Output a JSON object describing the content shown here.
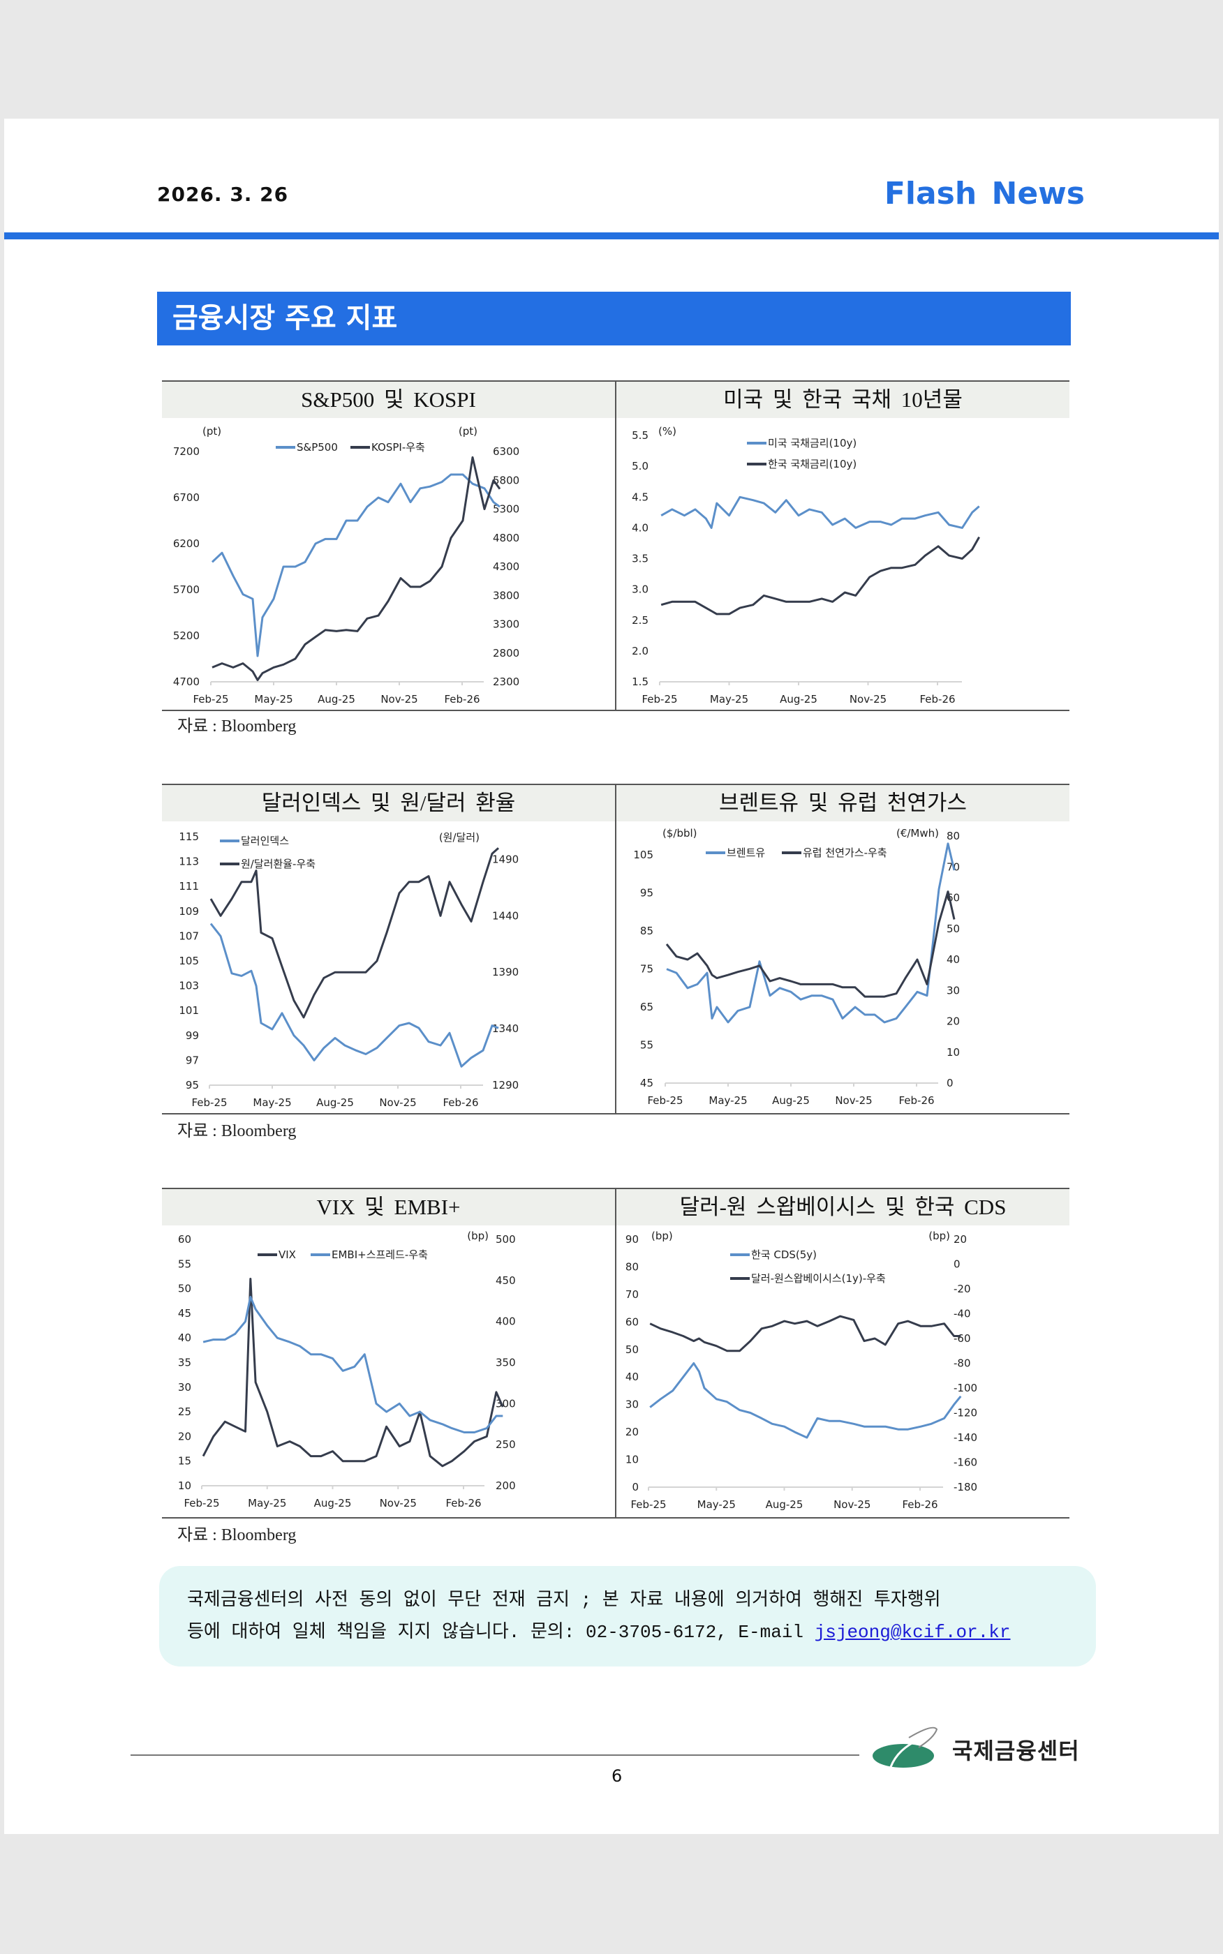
{
  "header": {
    "date": "2026. 3. 26",
    "brand": "Flash News"
  },
  "section_title": "금융시장 주요 지표",
  "sources": [
    "자료 : Bloomberg",
    "자료 : Bloomberg",
    "자료 : Bloomberg"
  ],
  "colors": {
    "accent": "#2470e0",
    "series_light": "#5b8fc9",
    "series_dark": "#353c4c",
    "disclaimer_bg": "#e4f7f6",
    "logo_green": "#2e8b6a"
  },
  "chart_data": [
    {
      "type": "line",
      "title": "S&P500 및 KOSPI",
      "x_dates": [
        "2025-02-03",
        "2025-02-17",
        "2025-03-03",
        "2025-03-17",
        "2025-04-01",
        "2025-04-08",
        "2025-04-15",
        "2025-05-01",
        "2025-05-15",
        "2025-06-02",
        "2025-06-16",
        "2025-07-01",
        "2025-07-15",
        "2025-08-01",
        "2025-08-15",
        "2025-09-01",
        "2025-09-15",
        "2025-10-01",
        "2025-10-15",
        "2025-11-03",
        "2025-11-17",
        "2025-12-01",
        "2025-12-15",
        "2026-01-02",
        "2026-01-15",
        "2026-02-02",
        "2026-02-16",
        "2026-03-03",
        "2026-03-16",
        "2026-03-25"
      ],
      "x_tick_labels": [
        "Feb-25",
        "May-25",
        "Aug-25",
        "Nov-25",
        "Feb-26"
      ],
      "left_axis": {
        "unit": "(pt)",
        "range": [
          4700,
          7200
        ],
        "ticks": [
          4700,
          5200,
          5700,
          6200,
          6700,
          7200
        ]
      },
      "right_axis": {
        "unit": "(pt)",
        "range": [
          2300,
          6300
        ],
        "ticks": [
          2300,
          2800,
          3300,
          3800,
          4300,
          4800,
          5300,
          5800,
          6300
        ]
      },
      "legend_placement": "top-center",
      "series": [
        {
          "name": "S&P500",
          "axis": "left",
          "color": "#5b8fc9",
          "values": [
            6000,
            6100,
            5850,
            5650,
            5600,
            4980,
            5400,
            5600,
            5950,
            5950,
            6000,
            6200,
            6250,
            6250,
            6450,
            6450,
            6600,
            6700,
            6650,
            6850,
            6650,
            6800,
            6820,
            6870,
            6950,
            6950,
            6850,
            6800,
            6650,
            6600
          ]
        },
        {
          "name": "KOSPI-우축",
          "axis": "right",
          "color": "#353c4c",
          "values": [
            2550,
            2620,
            2550,
            2620,
            2480,
            2330,
            2450,
            2550,
            2600,
            2700,
            2950,
            3080,
            3200,
            3180,
            3200,
            3180,
            3400,
            3450,
            3700,
            4100,
            3950,
            3950,
            4050,
            4300,
            4800,
            5100,
            6200,
            5300,
            5800,
            5650
          ]
        }
      ]
    },
    {
      "type": "line",
      "title": "미국 및 한국 국채 10년물",
      "x_dates": [
        "2025-02-03",
        "2025-02-17",
        "2025-03-03",
        "2025-03-17",
        "2025-04-01",
        "2025-04-08",
        "2025-04-15",
        "2025-05-01",
        "2025-05-15",
        "2025-06-02",
        "2025-06-16",
        "2025-07-01",
        "2025-07-15",
        "2025-08-01",
        "2025-08-15",
        "2025-09-01",
        "2025-09-15",
        "2025-10-01",
        "2025-10-15",
        "2025-11-03",
        "2025-11-17",
        "2025-12-01",
        "2025-12-15",
        "2026-01-02",
        "2026-01-15",
        "2026-02-02",
        "2026-02-16",
        "2026-03-03",
        "2026-03-16",
        "2026-03-25"
      ],
      "x_tick_labels": [
        "Feb-25",
        "May-25",
        "Aug-25",
        "Nov-25",
        "Feb-26"
      ],
      "left_axis": {
        "unit": "(%)",
        "range": [
          1.5,
          5.5
        ],
        "ticks": [
          "1.5",
          "2.0",
          "2.5",
          "3.0",
          "3.5",
          "4.0",
          "4.5",
          "5.0",
          "5.5"
        ]
      },
      "legend_placement": "top-center-stacked",
      "series": [
        {
          "name": "미국 국채금리(10y)",
          "axis": "left",
          "color": "#5b8fc9",
          "values": [
            4.2,
            4.3,
            4.2,
            4.3,
            4.15,
            4.0,
            4.4,
            4.2,
            4.5,
            4.45,
            4.4,
            4.25,
            4.45,
            4.2,
            4.3,
            4.25,
            4.05,
            4.15,
            4.0,
            4.1,
            4.1,
            4.05,
            4.15,
            4.15,
            4.2,
            4.25,
            4.05,
            4.0,
            4.25,
            4.35
          ]
        },
        {
          "name": "한국 국채금리(10y)",
          "axis": "left",
          "color": "#353c4c",
          "values": [
            2.75,
            2.8,
            2.8,
            2.8,
            2.7,
            2.65,
            2.6,
            2.6,
            2.7,
            2.75,
            2.9,
            2.85,
            2.8,
            2.8,
            2.8,
            2.85,
            2.8,
            2.95,
            2.9,
            3.2,
            3.3,
            3.35,
            3.35,
            3.4,
            3.55,
            3.7,
            3.55,
            3.5,
            3.65,
            3.85
          ]
        }
      ]
    },
    {
      "type": "line",
      "title": "달러인덱스 및 원/달러 환율",
      "x_dates": [
        "2025-02-03",
        "2025-02-17",
        "2025-03-03",
        "2025-03-17",
        "2025-04-01",
        "2025-04-08",
        "2025-04-15",
        "2025-05-01",
        "2025-05-15",
        "2025-06-02",
        "2025-06-16",
        "2025-07-01",
        "2025-07-15",
        "2025-08-01",
        "2025-08-15",
        "2025-09-01",
        "2025-09-15",
        "2025-10-01",
        "2025-10-15",
        "2025-11-03",
        "2025-11-17",
        "2025-12-01",
        "2025-12-15",
        "2026-01-02",
        "2026-01-15",
        "2026-02-02",
        "2026-02-16",
        "2026-03-03",
        "2026-03-16",
        "2026-03-25"
      ],
      "x_tick_labels": [
        "Feb-25",
        "May-25",
        "Aug-25",
        "Nov-25",
        "Feb-26"
      ],
      "left_axis": {
        "unit": "",
        "range": [
          95,
          115
        ],
        "ticks": [
          95,
          97,
          99,
          101,
          103,
          105,
          107,
          109,
          111,
          113,
          115
        ]
      },
      "right_axis": {
        "unit": "(원/달러)",
        "range": [
          1290,
          1510
        ],
        "ticks": [
          1290,
          1340,
          1390,
          1440,
          1490
        ]
      },
      "legend_placement": "top-left-stacked",
      "series": [
        {
          "name": "달러인덱스",
          "axis": "left",
          "color": "#5b8fc9",
          "values": [
            108,
            107,
            104,
            103.8,
            104.2,
            103,
            100,
            99.5,
            100.8,
            99,
            98.2,
            97,
            98,
            98.8,
            98.2,
            97.8,
            97.5,
            98,
            98.8,
            99.8,
            100,
            99.6,
            98.5,
            98.2,
            99.2,
            96.5,
            97.2,
            97.8,
            99.8,
            99.6
          ]
        },
        {
          "name": "원/달러환율-우축",
          "axis": "right",
          "color": "#353c4c",
          "values": [
            1455,
            1440,
            1455,
            1470,
            1470,
            1480,
            1425,
            1420,
            1395,
            1365,
            1350,
            1370,
            1385,
            1390,
            1390,
            1390,
            1390,
            1400,
            1425,
            1460,
            1470,
            1470,
            1475,
            1440,
            1470,
            1450,
            1435,
            1470,
            1495,
            1500
          ]
        }
      ]
    },
    {
      "type": "line",
      "title": "브렌트유 및 유럽 천연가스",
      "x_dates": [
        "2025-02-03",
        "2025-02-17",
        "2025-03-03",
        "2025-03-17",
        "2025-04-01",
        "2025-04-08",
        "2025-04-15",
        "2025-05-01",
        "2025-05-15",
        "2025-06-02",
        "2025-06-16",
        "2025-07-01",
        "2025-07-15",
        "2025-08-01",
        "2025-08-15",
        "2025-09-01",
        "2025-09-15",
        "2025-10-01",
        "2025-10-15",
        "2025-11-03",
        "2025-11-17",
        "2025-12-01",
        "2025-12-15",
        "2026-01-02",
        "2026-01-15",
        "2026-02-02",
        "2026-02-16",
        "2026-03-03",
        "2026-03-16",
        "2026-03-25"
      ],
      "x_tick_labels": [
        "Feb-25",
        "May-25",
        "Aug-25",
        "Nov-25",
        "Feb-26"
      ],
      "left_axis": {
        "unit": "($/bbl)",
        "range": [
          45,
          110
        ],
        "ticks": [
          45,
          55,
          65,
          75,
          85,
          95,
          105
        ]
      },
      "right_axis": {
        "unit": "(€/Mwh)",
        "range": [
          0,
          80
        ],
        "ticks": [
          0,
          10,
          20,
          30,
          40,
          50,
          60,
          70,
          80
        ]
      },
      "legend_placement": "top-center",
      "series": [
        {
          "name": "브렌트유",
          "axis": "left",
          "color": "#5b8fc9",
          "values": [
            75,
            74,
            70,
            71,
            74,
            62,
            65,
            61,
            64,
            65,
            77,
            68,
            70,
            69,
            67,
            68,
            68,
            67,
            62,
            65,
            63,
            63,
            61,
            62,
            65,
            69,
            68,
            96,
            108,
            101
          ]
        },
        {
          "name": "유럽 천연가스-우축",
          "axis": "right",
          "color": "#353c4c",
          "values": [
            45,
            41,
            40,
            42,
            38,
            35,
            34,
            35,
            36,
            37,
            38,
            33,
            34,
            33,
            32,
            32,
            32,
            32,
            31,
            31,
            28,
            28,
            28,
            29,
            34,
            40,
            32,
            52,
            62,
            53
          ]
        }
      ]
    },
    {
      "type": "line",
      "title": "VIX 및 EMBI+",
      "x_dates": [
        "2025-02-03",
        "2025-02-17",
        "2025-03-03",
        "2025-03-17",
        "2025-04-01",
        "2025-04-08",
        "2025-04-15",
        "2025-05-01",
        "2025-05-15",
        "2025-06-02",
        "2025-06-16",
        "2025-07-01",
        "2025-07-15",
        "2025-08-01",
        "2025-08-15",
        "2025-09-01",
        "2025-09-15",
        "2025-10-01",
        "2025-10-15",
        "2025-11-03",
        "2025-11-17",
        "2025-12-01",
        "2025-12-15",
        "2026-01-02",
        "2026-01-15",
        "2026-02-02",
        "2026-02-16",
        "2026-03-03",
        "2026-03-16",
        "2026-03-25"
      ],
      "x_tick_labels": [
        "Feb-25",
        "May-25",
        "Aug-25",
        "Nov-25",
        "Feb-26"
      ],
      "left_axis": {
        "unit": "",
        "range": [
          10,
          60
        ],
        "ticks": [
          10,
          15,
          20,
          25,
          30,
          35,
          40,
          45,
          50,
          55,
          60
        ]
      },
      "right_axis": {
        "unit": "(bp)",
        "range": [
          200,
          500
        ],
        "ticks": [
          200,
          250,
          300,
          350,
          400,
          450,
          500
        ]
      },
      "legend_placement": "top-center",
      "series": [
        {
          "name": "VIX",
          "axis": "left",
          "color": "#353c4c",
          "values": [
            16,
            20,
            23,
            22,
            21,
            52,
            31,
            25,
            18,
            19,
            18,
            16,
            16,
            17,
            15,
            15,
            15,
            16,
            22,
            18,
            19,
            25,
            16,
            14,
            15,
            17,
            19,
            20,
            29,
            26
          ]
        },
        {
          "name": "EMBI+스프레드-우축",
          "axis": "right",
          "color": "#5b8fc9",
          "values": [
            375,
            378,
            378,
            385,
            400,
            430,
            415,
            395,
            380,
            375,
            370,
            360,
            360,
            355,
            340,
            345,
            360,
            300,
            290,
            300,
            285,
            290,
            280,
            275,
            270,
            265,
            265,
            270,
            285,
            285
          ]
        }
      ]
    },
    {
      "type": "line",
      "title": "달러-원 스왑베이시스 및 한국 CDS",
      "x_dates": [
        "2025-02-03",
        "2025-02-17",
        "2025-03-03",
        "2025-03-17",
        "2025-04-01",
        "2025-04-08",
        "2025-04-15",
        "2025-05-01",
        "2025-05-15",
        "2025-06-02",
        "2025-06-16",
        "2025-07-01",
        "2025-07-15",
        "2025-08-01",
        "2025-08-15",
        "2025-09-01",
        "2025-09-15",
        "2025-10-01",
        "2025-10-15",
        "2025-11-03",
        "2025-11-17",
        "2025-12-01",
        "2025-12-15",
        "2026-01-02",
        "2026-01-15",
        "2026-02-02",
        "2026-02-16",
        "2026-03-03",
        "2026-03-16",
        "2026-03-25"
      ],
      "x_tick_labels": [
        "Feb-25",
        "May-25",
        "Aug-25",
        "Nov-25",
        "Feb-26"
      ],
      "left_axis": {
        "unit": "(bp)",
        "range": [
          0,
          90
        ],
        "ticks": [
          0,
          10,
          20,
          30,
          40,
          50,
          60,
          70,
          80,
          90
        ]
      },
      "right_axis": {
        "unit": "(bp)",
        "range": [
          -180,
          20
        ],
        "ticks": [
          -180,
          -160,
          -140,
          -120,
          -100,
          -80,
          -60,
          -40,
          -20,
          0,
          20
        ]
      },
      "legend_placement": "top-center-stacked",
      "series": [
        {
          "name": "한국 CDS(5y)",
          "axis": "left",
          "color": "#5b8fc9",
          "values": [
            29,
            32,
            35,
            40,
            45,
            42,
            36,
            32,
            31,
            28,
            27,
            25,
            23,
            22,
            20,
            18,
            25,
            24,
            24,
            23,
            22,
            22,
            22,
            21,
            21,
            22,
            23,
            25,
            30,
            33
          ]
        },
        {
          "name": "달러-원스왑베이시스(1y)-우축",
          "axis": "right",
          "color": "#353c4c",
          "values": [
            -48,
            -52,
            -55,
            -58,
            -62,
            -60,
            -63,
            -66,
            -70,
            -70,
            -62,
            -52,
            -50,
            -46,
            -48,
            -46,
            -50,
            -46,
            -42,
            -45,
            -62,
            -60,
            -65,
            -48,
            -46,
            -50,
            -50,
            -48,
            -58,
            -58
          ]
        }
      ]
    }
  ],
  "disclaimer": {
    "line1": "국제금융센터의 사전 동의 없이 무단 전재 금지 ; 본 자료 내용에 의거하여 행해진 투자행위",
    "line2": "등에 대하여 일체 책임을 지지 않습니다. 문의: 02-3705-6172, E-mail ",
    "email": "jsjeong@kcif.or.kr"
  },
  "footer": {
    "page_number": "6",
    "logo_text": "국제금융센터"
  }
}
